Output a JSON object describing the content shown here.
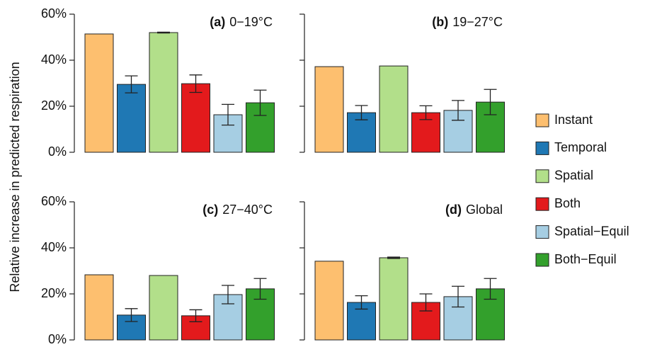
{
  "y_label": "Relative increase in predicted respiration",
  "legend": [
    {
      "name": "Instant",
      "color": "#FDBF6F"
    },
    {
      "name": "Temporal",
      "color": "#1F78B4"
    },
    {
      "name": "Spatial",
      "color": "#B2DF8A"
    },
    {
      "name": "Both",
      "color": "#E31A1C"
    },
    {
      "name": "Spatial−Equil",
      "color": "#A6CEE3"
    },
    {
      "name": "Both−Equil",
      "color": "#33A02C"
    }
  ],
  "chart_data": [
    {
      "type": "bar",
      "title": "(a)",
      "subtitle": "0−19°C",
      "values": [
        51.4,
        29.5,
        52,
        29.8,
        16.3,
        21.5
      ],
      "errors": [
        null,
        3.7,
        0.2,
        3.8,
        4.5,
        5.5
      ],
      "ylim": [
        0,
        60
      ],
      "yticks": [
        {
          "value": 0,
          "label": "0%"
        },
        {
          "value": 20,
          "label": "20%"
        },
        {
          "value": 40,
          "label": "40%"
        },
        {
          "value": 60,
          "label": "60%"
        }
      ]
    },
    {
      "type": "bar",
      "title": "(b)",
      "subtitle": "19−27°C",
      "values": [
        37.2,
        17.2,
        37.5,
        17.2,
        18.2,
        21.8
      ],
      "errors": [
        null,
        3.1,
        null,
        3,
        4.3,
        5.5
      ],
      "ylim": [
        0,
        60
      ],
      "yticks": [
        0,
        20,
        40,
        60
      ]
    },
    {
      "type": "bar",
      "title": "(c)",
      "subtitle": "27−40°C",
      "values": [
        28.3,
        10.8,
        28,
        10.5,
        19.7,
        22.2
      ],
      "errors": [
        null,
        2.8,
        null,
        2.6,
        4,
        4.5
      ],
      "ylim": [
        0,
        60
      ],
      "yticks": [
        {
          "value": 0,
          "label": "0%"
        },
        {
          "value": 20,
          "label": "20%"
        },
        {
          "value": 40,
          "label": "40%"
        },
        {
          "value": 60,
          "label": "60%"
        }
      ]
    },
    {
      "type": "bar",
      "title": "(d)",
      "subtitle": "Global",
      "values": [
        34.2,
        16.3,
        35.7,
        16.3,
        18.8,
        22.2
      ],
      "errors": [
        null,
        2.9,
        0.3,
        3.7,
        4.5,
        4.5
      ],
      "ylim": [
        0,
        60
      ],
      "yticks": [
        0,
        20,
        40,
        60
      ]
    }
  ]
}
